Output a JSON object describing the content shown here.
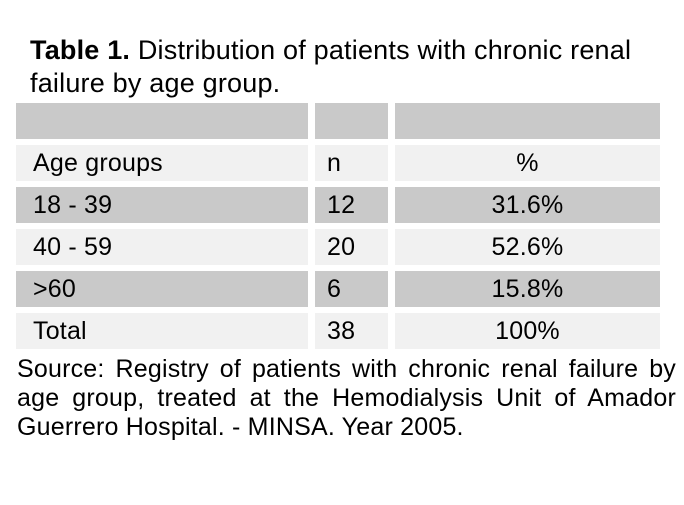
{
  "title": {
    "bold": "Table 1.",
    "line1_rest": " Distribution of patients with chronic renal",
    "line2": "failure by age group."
  },
  "table": {
    "columns": [
      "Age groups",
      "n",
      "%"
    ],
    "rows": [
      [
        "18 - 39",
        "12",
        "31.6%"
      ],
      [
        "40 - 59",
        "20",
        "52.6%"
      ],
      [
        ">60",
        "6",
        "15.8%"
      ],
      [
        "Total",
        "38",
        "100%"
      ]
    ]
  },
  "source_lines": [
    "Source: Registry of patients with chronic renal failure by",
    "age group, treated at the Hemodialysis Unit of Amador",
    "Guerrero Hospital. - MINSA. Year 2005."
  ],
  "colors": {
    "row_dark": "#c9c9c9",
    "row_light": "#f1f1f1",
    "text": "#000000",
    "background": "#ffffff"
  }
}
